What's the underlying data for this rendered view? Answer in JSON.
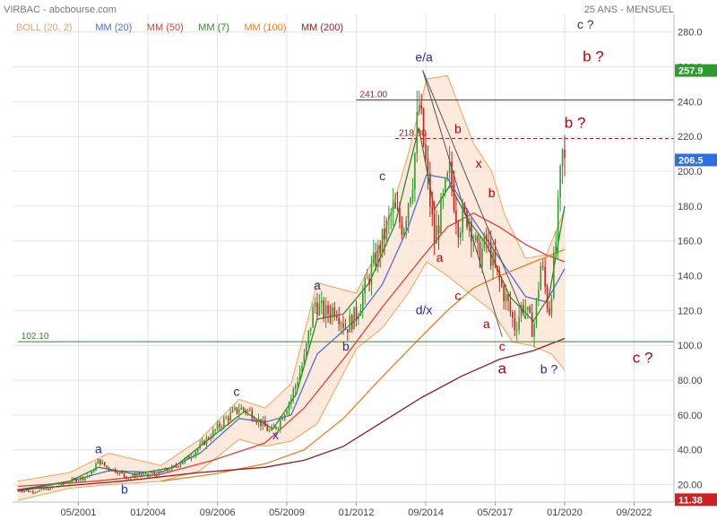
{
  "header": {
    "title": "VIRBAC - abcbourse.com",
    "period": "25 ANS - MENSUEL"
  },
  "legend": [
    {
      "label": "BOLL (20, 2)",
      "color": "#f2a25c"
    },
    {
      "label": "MM (20)",
      "color": "#4f6fe0"
    },
    {
      "label": "MM (50)",
      "color": "#e0403a"
    },
    {
      "label": "MM (7)",
      "color": "#2e8a2e"
    },
    {
      "label": "MM (100)",
      "color": "#e88020"
    },
    {
      "label": "MM (200)",
      "color": "#8a2222"
    }
  ],
  "colors": {
    "up_candle": "#2e9d2e",
    "down_candle": "#c62020",
    "boll_fill": "#fde3d0",
    "grid": "#e4e4e4",
    "label_blue": "#2a2aa0",
    "label_red": "#bb0000",
    "last_price_bg": "#2f6fe0",
    "high_bg": "#2f9a2f",
    "low_bg": "#d02020"
  },
  "chart_data": {
    "type": "candlestick",
    "title": "VIRBAC",
    "ylim": [
      10,
      285
    ],
    "y_ticks": [
      "20.00",
      "40.00",
      "60.00",
      "80.00",
      "100.0",
      "120.0",
      "140.0",
      "160.0",
      "180.0",
      "200.0",
      "220.0",
      "240.0",
      "260.0",
      "280.0"
    ],
    "x_ticks": [
      {
        "label": "05/2001",
        "t": 2001.33
      },
      {
        "label": "01/2004",
        "t": 2004.0
      },
      {
        "label": "09/2006",
        "t": 2006.67
      },
      {
        "label": "05/2009",
        "t": 2009.33
      },
      {
        "label": "01/2012",
        "t": 2012.0
      },
      {
        "label": "09/2014",
        "t": 2014.67
      },
      {
        "label": "05/2017",
        "t": 2017.33
      },
      {
        "label": "01/2020",
        "t": 2020.0
      },
      {
        "label": "09/2022",
        "t": 2022.67
      }
    ],
    "xlim": [
      1998.8,
      2024.2
    ],
    "price_path": [
      [
        1999.0,
        17
      ],
      [
        1999.5,
        16
      ],
      [
        2000.0,
        17
      ],
      [
        2000.5,
        19
      ],
      [
        2001.0,
        22
      ],
      [
        2001.5,
        24
      ],
      [
        2001.8,
        26
      ],
      [
        2002.1,
        34
      ],
      [
        2002.4,
        30
      ],
      [
        2002.8,
        28
      ],
      [
        2003.2,
        24
      ],
      [
        2003.6,
        26
      ],
      [
        2004.0,
        25
      ],
      [
        2004.5,
        27
      ],
      [
        2005.0,
        30
      ],
      [
        2005.5,
        35
      ],
      [
        2006.0,
        42
      ],
      [
        2006.5,
        50
      ],
      [
        2007.0,
        58
      ],
      [
        2007.5,
        64
      ],
      [
        2007.9,
        62
      ],
      [
        2008.3,
        56
      ],
      [
        2008.7,
        50
      ],
      [
        2009.0,
        55
      ],
      [
        2009.5,
        70
      ],
      [
        2010.0,
        92
      ],
      [
        2010.4,
        125
      ],
      [
        2010.8,
        118
      ],
      [
        2011.2,
        122
      ],
      [
        2011.6,
        110
      ],
      [
        2012.0,
        118
      ],
      [
        2012.5,
        140
      ],
      [
        2013.0,
        160
      ],
      [
        2013.4,
        178
      ],
      [
        2013.8,
        168
      ],
      [
        2014.2,
        200
      ],
      [
        2014.4,
        240
      ],
      [
        2014.7,
        200
      ],
      [
        2015.0,
        160
      ],
      [
        2015.3,
        180
      ],
      [
        2015.6,
        200
      ],
      [
        2015.9,
        170
      ],
      [
        2016.3,
        175
      ],
      [
        2016.7,
        150
      ],
      [
        2017.0,
        160
      ],
      [
        2017.4,
        140
      ],
      [
        2017.8,
        125
      ],
      [
        2018.1,
        110
      ],
      [
        2018.4,
        125
      ],
      [
        2018.8,
        108
      ],
      [
        2019.1,
        148
      ],
      [
        2019.4,
        118
      ],
      [
        2019.7,
        165
      ],
      [
        2019.9,
        210
      ],
      [
        2020.0,
        204
      ]
    ],
    "series": [
      {
        "name": "BOLL (20, 2)",
        "upper": [
          [
            1999.0,
            22
          ],
          [
            2001.0,
            27
          ],
          [
            2002.5,
            38
          ],
          [
            2004.5,
            31
          ],
          [
            2006.0,
            46
          ],
          [
            2007.5,
            69
          ],
          [
            2008.5,
            64
          ],
          [
            2009.5,
            78
          ],
          [
            2010.5,
            136
          ],
          [
            2012.0,
            130
          ],
          [
            2013.0,
            160
          ],
          [
            2014.0,
            210
          ],
          [
            2014.7,
            253
          ],
          [
            2015.5,
            255
          ],
          [
            2016.5,
            216
          ],
          [
            2017.2,
            200
          ],
          [
            2017.7,
            175
          ],
          [
            2018.5,
            150
          ],
          [
            2019.3,
            152
          ],
          [
            2020.0,
            178
          ]
        ],
        "lower": [
          [
            1999.0,
            11
          ],
          [
            2001.0,
            18
          ],
          [
            2002.5,
            20
          ],
          [
            2004.5,
            22
          ],
          [
            2006.0,
            28
          ],
          [
            2007.5,
            46
          ],
          [
            2008.5,
            42
          ],
          [
            2009.5,
            45
          ],
          [
            2010.5,
            55
          ],
          [
            2012.0,
            98
          ],
          [
            2013.0,
            110
          ],
          [
            2014.0,
            130
          ],
          [
            2014.7,
            148
          ],
          [
            2015.5,
            140
          ],
          [
            2016.5,
            128
          ],
          [
            2017.2,
            120
          ],
          [
            2018.0,
            102
          ],
          [
            2018.7,
            100
          ],
          [
            2019.5,
            95
          ],
          [
            2020.0,
            86
          ]
        ]
      },
      {
        "name": "MM (20)",
        "values": [
          [
            1999.0,
            16
          ],
          [
            2001.0,
            22
          ],
          [
            2002.5,
            28
          ],
          [
            2004.5,
            27
          ],
          [
            2006.0,
            38
          ],
          [
            2007.5,
            58
          ],
          [
            2008.5,
            56
          ],
          [
            2009.5,
            60
          ],
          [
            2010.5,
            95
          ],
          [
            2012.0,
            115
          ],
          [
            2013.0,
            135
          ],
          [
            2014.0,
            168
          ],
          [
            2014.7,
            198
          ],
          [
            2015.5,
            196
          ],
          [
            2016.5,
            172
          ],
          [
            2017.5,
            150
          ],
          [
            2018.5,
            128
          ],
          [
            2019.3,
            125
          ],
          [
            2020.0,
            144
          ]
        ]
      },
      {
        "name": "MM (50)",
        "values": [
          [
            1999.0,
            19
          ],
          [
            2002.0,
            22
          ],
          [
            2004.5,
            26
          ],
          [
            2006.5,
            34
          ],
          [
            2008.5,
            44
          ],
          [
            2010.0,
            64
          ],
          [
            2011.5,
            92
          ],
          [
            2013.0,
            122
          ],
          [
            2014.5,
            150
          ],
          [
            2015.5,
            168
          ],
          [
            2016.5,
            176
          ],
          [
            2017.5,
            168
          ],
          [
            2018.5,
            158
          ],
          [
            2019.3,
            152
          ],
          [
            2020.0,
            148
          ]
        ]
      },
      {
        "name": "MM (7)",
        "values": [
          [
            1999.0,
            17
          ],
          [
            2001.0,
            22
          ],
          [
            2002.1,
            30
          ],
          [
            2003.5,
            26
          ],
          [
            2005.0,
            30
          ],
          [
            2006.5,
            48
          ],
          [
            2007.7,
            62
          ],
          [
            2008.8,
            52
          ],
          [
            2009.7,
            72
          ],
          [
            2010.5,
            115
          ],
          [
            2011.5,
            118
          ],
          [
            2012.5,
            136
          ],
          [
            2013.5,
            170
          ],
          [
            2014.4,
            225
          ],
          [
            2015.0,
            178
          ],
          [
            2015.6,
            192
          ],
          [
            2016.3,
            172
          ],
          [
            2017.0,
            158
          ],
          [
            2017.9,
            128
          ],
          [
            2018.8,
            114
          ],
          [
            2019.4,
            128
          ],
          [
            2020.0,
            180
          ]
        ]
      },
      {
        "name": "MM (100)",
        "values": [
          [
            2004.5,
            22
          ],
          [
            2006.5,
            26
          ],
          [
            2008.5,
            32
          ],
          [
            2010.0,
            40
          ],
          [
            2011.5,
            58
          ],
          [
            2013.0,
            82
          ],
          [
            2014.5,
            105
          ],
          [
            2015.5,
            120
          ],
          [
            2016.5,
            133
          ],
          [
            2017.5,
            140
          ],
          [
            2018.5,
            146
          ],
          [
            2020.0,
            155
          ]
        ]
      },
      {
        "name": "MM (200)",
        "values": [
          [
            1999.0,
            17
          ],
          [
            2003.0,
            22
          ],
          [
            2006.0,
            27
          ],
          [
            2008.5,
            30
          ],
          [
            2010.0,
            34
          ],
          [
            2011.5,
            42
          ],
          [
            2013.0,
            56
          ],
          [
            2014.5,
            70
          ],
          [
            2016.0,
            82
          ],
          [
            2017.5,
            92
          ],
          [
            2018.8,
            97
          ],
          [
            2020.0,
            104
          ]
        ]
      }
    ],
    "levels": [
      {
        "label": "241.00",
        "value": 241,
        "color": "#a02020",
        "style": "solid",
        "x_from": 2012.0
      },
      {
        "label": "218.80",
        "value": 218.8,
        "color": "#a02020",
        "style": "dashed",
        "x_from": 2013.5
      },
      {
        "label": "102.10",
        "value": 102.1,
        "color": "#2e8a2e",
        "style": "solid",
        "x_from": 1999.0
      }
    ],
    "trendlines": [
      {
        "from": [
          2014.55,
          258
        ],
        "to": [
          2017.6,
          105
        ],
        "color": "#555555"
      },
      {
        "from": [
          2014.55,
          258
        ],
        "to": [
          2018.5,
          115
        ],
        "color": "#555555"
      }
    ],
    "wave_labels": [
      {
        "text": "a",
        "t": 2002.1,
        "v": 38,
        "color": "#2a2aa0"
      },
      {
        "text": "b",
        "t": 2003.1,
        "v": 15,
        "color": "#2a2aa0"
      },
      {
        "text": "c",
        "t": 2007.4,
        "v": 71,
        "color": "#2a2aa0"
      },
      {
        "text": "x",
        "t": 2008.9,
        "v": 46,
        "color": "#2a2aa0"
      },
      {
        "text": "a",
        "t": 2010.5,
        "v": 132,
        "color": "#2a2aa0"
      },
      {
        "text": "b",
        "t": 2011.6,
        "v": 97,
        "color": "#2a2aa0"
      },
      {
        "text": "c",
        "t": 2013.0,
        "v": 195,
        "color": "#2a2aa0"
      },
      {
        "text": "e/a",
        "t": 2014.6,
        "v": 263,
        "color": "#2a2aa0"
      },
      {
        "text": "d/x",
        "t": 2014.6,
        "v": 118,
        "color": "#2a2aa0"
      },
      {
        "text": "b",
        "t": 2015.9,
        "v": 222,
        "color": "#bb0000"
      },
      {
        "text": "x",
        "t": 2016.7,
        "v": 202,
        "color": "#bb0000"
      },
      {
        "text": "b",
        "t": 2017.2,
        "v": 185,
        "color": "#bb0000"
      },
      {
        "text": "a",
        "t": 2015.2,
        "v": 148,
        "color": "#bb0000"
      },
      {
        "text": "c",
        "t": 2015.9,
        "v": 126,
        "color": "#bb0000"
      },
      {
        "text": "a",
        "t": 2017.0,
        "v": 110,
        "color": "#bb0000"
      },
      {
        "text": "c",
        "t": 2017.6,
        "v": 97,
        "color": "#bb0000"
      },
      {
        "text": "a",
        "t": 2017.6,
        "v": 84,
        "color": "#bb0000",
        "big": true
      },
      {
        "text": "b ?",
        "t": 2019.4,
        "v": 84,
        "color": "#2a2aa0"
      },
      {
        "text": "c ?",
        "t": 2023.0,
        "v": 90,
        "color": "#bb0000",
        "big": true
      },
      {
        "text": "b ?",
        "t": 2020.4,
        "v": 225,
        "color": "#bb0000",
        "big": true
      },
      {
        "text": "b ?",
        "t": 2021.1,
        "v": 263,
        "color": "#bb0000",
        "big": true
      },
      {
        "text": "c ?",
        "t": 2020.8,
        "v": 282,
        "color": "#2a2aa0"
      }
    ],
    "price_tags": [
      {
        "label": "257.9",
        "value": 257.9,
        "kind": "high"
      },
      {
        "label": "206.5",
        "value": 206.5,
        "kind": "last"
      },
      {
        "label": "11.38",
        "value": 11.38,
        "kind": "low"
      }
    ]
  }
}
